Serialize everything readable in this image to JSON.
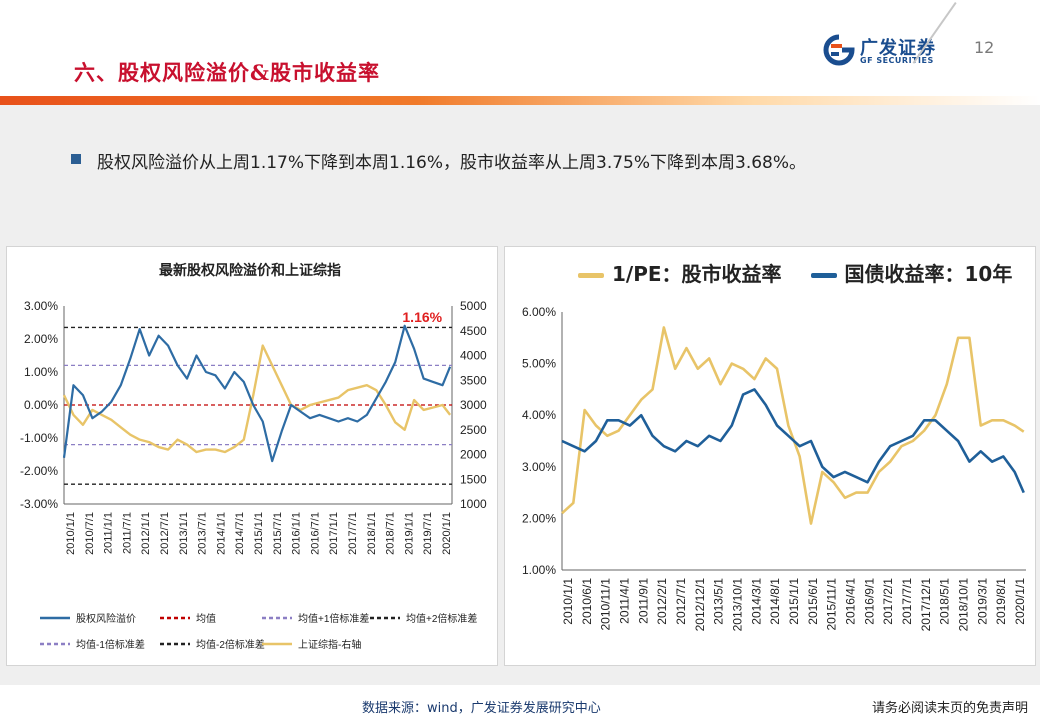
{
  "header": {
    "title": "六、股权风险溢价&股市收益率",
    "logo_cn": "广发证券",
    "logo_en": "GF SECURITIES",
    "page_number": "12"
  },
  "summary": "股权风险溢价从上周1.17%下降到本周1.16%，股市收益率从上周3.75%下降到本周3.68%。",
  "footer": {
    "source": "数据来源：wind，广发证券发展研究中心",
    "disclaimer": "请务必阅读末页的免责声明"
  },
  "colors": {
    "title_red": "#c8102e",
    "erp_blue": "#2e6ca4",
    "index_gold": "#e8c468",
    "mean_red": "#c00000",
    "std1_purple": "#8c7fc4",
    "std2_black": "#222222",
    "bond_blue": "#1f5f99"
  },
  "chart_data": [
    {
      "type": "line",
      "title": "最新股权风险溢价和上证综指",
      "annotation": "1.16%",
      "y_left": {
        "ticks": [
          "3.00%",
          "2.00%",
          "1.00%",
          "0.00%",
          "-1.00%",
          "-2.00%",
          "-3.00%"
        ],
        "range": [
          -3,
          3
        ]
      },
      "y_right": {
        "ticks": [
          "5000",
          "4500",
          "4000",
          "3500",
          "3000",
          "2500",
          "2000",
          "1500",
          "1000"
        ],
        "range": [
          1000,
          5000
        ]
      },
      "x_ticks": [
        "2010/1/1",
        "2010/7/1",
        "2011/1/1",
        "2011/7/1",
        "2012/1/1",
        "2012/7/1",
        "2013/1/1",
        "2013/7/1",
        "2014/1/1",
        "2014/7/1",
        "2015/1/1",
        "2015/7/1",
        "2016/1/1",
        "2016/7/1",
        "2017/1/1",
        "2017/7/1",
        "2018/1/1",
        "2018/7/1",
        "2019/1/1",
        "2019/7/1",
        "2020/1/1"
      ],
      "x": [
        2010.0,
        2010.25,
        2010.5,
        2010.75,
        2011.0,
        2011.25,
        2011.5,
        2011.75,
        2012.0,
        2012.25,
        2012.5,
        2012.75,
        2013.0,
        2013.25,
        2013.5,
        2013.75,
        2014.0,
        2014.25,
        2014.5,
        2014.75,
        2015.0,
        2015.25,
        2015.5,
        2015.75,
        2016.0,
        2016.25,
        2016.5,
        2016.75,
        2017.0,
        2017.25,
        2017.5,
        2017.75,
        2018.0,
        2018.25,
        2018.5,
        2018.75,
        2019.0,
        2019.25,
        2019.5,
        2019.75,
        2020.0,
        2020.2
      ],
      "series": [
        {
          "name": "股权风险溢价",
          "axis": "left",
          "values": [
            -1.6,
            0.6,
            0.3,
            -0.4,
            -0.2,
            0.1,
            0.6,
            1.4,
            2.3,
            1.5,
            2.1,
            1.8,
            1.2,
            0.8,
            1.5,
            1.0,
            0.9,
            0.5,
            1.0,
            0.7,
            0.0,
            -0.5,
            -1.7,
            -0.8,
            0.0,
            -0.2,
            -0.4,
            -0.3,
            -0.4,
            -0.5,
            -0.4,
            -0.5,
            -0.3,
            0.2,
            0.7,
            1.3,
            2.4,
            1.7,
            0.8,
            0.7,
            0.6,
            1.16
          ]
        },
        {
          "name": "上证综指-右轴",
          "axis": "right",
          "values": [
            3200,
            2800,
            2600,
            2900,
            2800,
            2700,
            2550,
            2400,
            2300,
            2250,
            2150,
            2100,
            2300,
            2200,
            2050,
            2100,
            2100,
            2050,
            2150,
            2300,
            3200,
            4200,
            3800,
            3400,
            3000,
            2900,
            3000,
            3050,
            3100,
            3150,
            3300,
            3350,
            3400,
            3300,
            3000,
            2650,
            2500,
            3100,
            2900,
            2950,
            3000,
            2800
          ]
        },
        {
          "name": "均值",
          "axis": "left",
          "constant": 0
        },
        {
          "name": "均值+1倍标准差",
          "axis": "left",
          "constant": 1.2
        },
        {
          "name": "均值+2倍标准差",
          "axis": "left",
          "constant": 2.35
        },
        {
          "name": "均值-1倍标准差",
          "axis": "left",
          "constant": -1.2
        },
        {
          "name": "均值-2倍标准差",
          "axis": "left",
          "constant": -2.4
        }
      ],
      "legend_labels": [
        "股权风险溢价",
        "均值",
        "均值+1倍标准差",
        "均值+2倍标准差",
        "均值-1倍标准差",
        "均值-2倍标准差",
        "上证综指-右轴"
      ]
    },
    {
      "type": "line",
      "legend_labels": [
        "1/PE：股市收益率",
        "国债收益率：10年"
      ],
      "y_ticks": [
        "6.00%",
        "5.00%",
        "4.00%",
        "3.00%",
        "2.00%",
        "1.00%"
      ],
      "ylim": [
        1,
        6
      ],
      "x_ticks": [
        "2010/1/1",
        "2010/6/1",
        "2010/11/1",
        "2011/4/1",
        "2011/9/1",
        "2012/2/1",
        "2012/7/1",
        "2012/12/1",
        "2013/5/1",
        "2013/10/1",
        "2014/3/1",
        "2014/8/1",
        "2015/1/1",
        "2015/6/1",
        "2015/11/1",
        "2016/4/1",
        "2016/9/1",
        "2017/2/1",
        "2017/7/1",
        "2017/12/1",
        "2018/5/1",
        "2018/10/1",
        "2019/3/1",
        "2019/8/1",
        "2020/1/1"
      ],
      "x": [
        2010.0,
        2010.25,
        2010.5,
        2010.75,
        2011.0,
        2011.25,
        2011.5,
        2011.75,
        2012.0,
        2012.25,
        2012.5,
        2012.75,
        2013.0,
        2013.25,
        2013.5,
        2013.75,
        2014.0,
        2014.25,
        2014.5,
        2014.75,
        2015.0,
        2015.25,
        2015.5,
        2015.75,
        2016.0,
        2016.25,
        2016.5,
        2016.75,
        2017.0,
        2017.25,
        2017.5,
        2017.75,
        2018.0,
        2018.25,
        2018.5,
        2018.75,
        2019.0,
        2019.25,
        2019.5,
        2019.75,
        2020.0,
        2020.2
      ],
      "series": [
        {
          "name": "1/PE：股市收益率",
          "values": [
            2.1,
            2.3,
            4.1,
            3.8,
            3.6,
            3.7,
            4.0,
            4.3,
            4.5,
            5.7,
            4.9,
            5.3,
            4.9,
            5.1,
            4.6,
            5.0,
            4.9,
            4.7,
            5.1,
            4.9,
            3.8,
            3.2,
            1.9,
            2.9,
            2.7,
            2.4,
            2.5,
            2.5,
            2.9,
            3.1,
            3.4,
            3.5,
            3.7,
            4.0,
            4.6,
            5.5,
            5.5,
            3.8,
            3.9,
            3.9,
            3.8,
            3.68
          ]
        },
        {
          "name": "国债收益率：10年",
          "values": [
            3.5,
            3.4,
            3.3,
            3.5,
            3.9,
            3.9,
            3.8,
            4.0,
            3.6,
            3.4,
            3.3,
            3.5,
            3.4,
            3.6,
            3.5,
            3.8,
            4.4,
            4.5,
            4.2,
            3.8,
            3.6,
            3.4,
            3.5,
            3.0,
            2.8,
            2.9,
            2.8,
            2.7,
            3.1,
            3.4,
            3.5,
            3.6,
            3.9,
            3.9,
            3.7,
            3.5,
            3.1,
            3.3,
            3.1,
            3.2,
            2.9,
            2.5
          ]
        }
      ]
    }
  ]
}
